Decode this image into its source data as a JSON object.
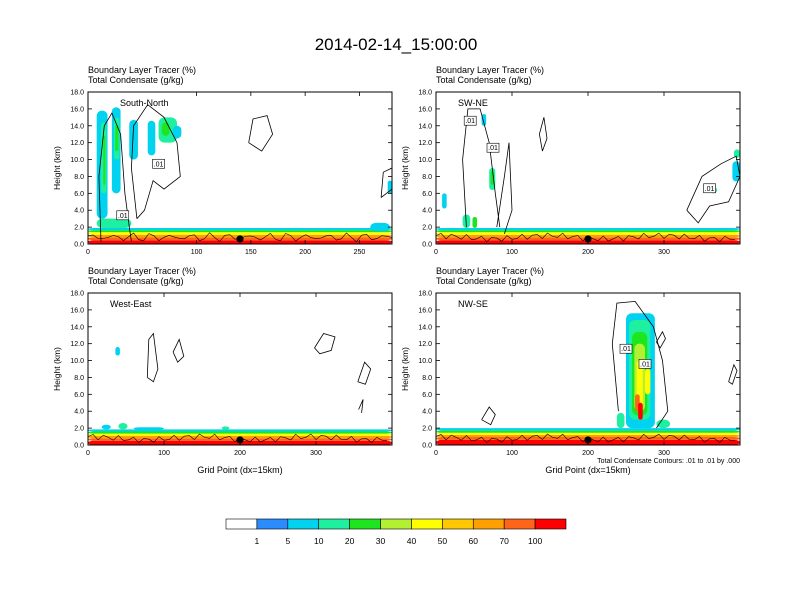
{
  "title": "2014-02-14_15:00:00",
  "colors": {
    "levels": [
      "#ffffff",
      "#2a8cff",
      "#00d2f0",
      "#1ef0a0",
      "#1ee61e",
      "#b4f032",
      "#ffff00",
      "#ffc800",
      "#ffa000",
      "#ff6419",
      "#ff0000"
    ],
    "contour": "#000000"
  },
  "colorbar": {
    "labels": [
      "1",
      "5",
      "10",
      "20",
      "30",
      "40",
      "50",
      "60",
      "70",
      "100"
    ]
  },
  "contour_note": "Total Condensate Contours: .01 to .01 by .000",
  "chart_data": [
    {
      "type": "heatmap",
      "panel": "South-North",
      "title_line1": "Boundary Layer Tracer   (%)",
      "title_line2": "Total Condensate   (g/kg)",
      "ylabel": "Height (km)",
      "xlabel": "",
      "xlim": [
        0,
        280
      ],
      "ylim": [
        0,
        18
      ],
      "xticks": [
        "0",
        "100",
        "150",
        "200",
        "250"
      ],
      "xtick_values": [
        0,
        100,
        150,
        200,
        250
      ],
      "yticks": [
        "0.0",
        "2.0",
        "4.0",
        "6.0",
        "8.0",
        "10.0",
        "12.0",
        "14.0",
        "16.0",
        "18.0"
      ],
      "marker_x": 140,
      "contour_labels": [
        ".01",
        ".01"
      ],
      "contour_label_pos": [
        [
          65,
          9.5
        ],
        [
          32,
          3.4
        ]
      ]
    },
    {
      "type": "heatmap",
      "panel": "SW-NE",
      "title_line1": "Boundary Layer Tracer   (%)",
      "title_line2": "Total Condensate   (g/kg)",
      "ylabel": "Height (km)",
      "xlabel": "",
      "xlim": [
        0,
        400
      ],
      "ylim": [
        0,
        18
      ],
      "xticks": [
        "0",
        "100",
        "200",
        "300"
      ],
      "xtick_values": [
        0,
        100,
        200,
        300
      ],
      "yticks": [
        "0.0",
        "2.0",
        "4.0",
        "6.0",
        "8.0",
        "10.0",
        "12.0",
        "14.0",
        "16.0",
        "18.0"
      ],
      "marker_x": 200,
      "contour_labels": [
        ".01",
        ".01",
        ".01"
      ],
      "contour_label_pos": [
        [
          45,
          14.6
        ],
        [
          75,
          11.4
        ],
        [
          360,
          6.6
        ]
      ]
    },
    {
      "type": "heatmap",
      "panel": "West-East",
      "title_line1": "Boundary Layer Tracer   (%)",
      "title_line2": "Total Condensate   (g/kg)",
      "ylabel": "Height (km)",
      "xlabel": "Grid Point (dx=15km)",
      "xlim": [
        0,
        400
      ],
      "ylim": [
        0,
        18
      ],
      "xticks": [
        "0",
        "100",
        "200",
        "300"
      ],
      "xtick_values": [
        0,
        100,
        200,
        300
      ],
      "yticks": [
        "0.0",
        "2.0",
        "4.0",
        "6.0",
        "8.0",
        "10.0",
        "12.0",
        "14.0",
        "16.0",
        "18.0"
      ],
      "marker_x": 200,
      "contour_labels": [],
      "contour_label_pos": []
    },
    {
      "type": "heatmap",
      "panel": "NW-SE",
      "title_line1": "Boundary Layer Tracer   (%)",
      "title_line2": "Total Condensate   (g/kg)",
      "ylabel": "Height (km)",
      "xlabel": "Grid Point (dx=15km)",
      "xlim": [
        0,
        400
      ],
      "ylim": [
        0,
        18
      ],
      "xticks": [
        "0",
        "100",
        "200",
        "300"
      ],
      "xtick_values": [
        0,
        100,
        200,
        300
      ],
      "yticks": [
        "0.0",
        "2.0",
        "4.0",
        "6.0",
        "8.0",
        "10.0",
        "12.0",
        "14.0",
        "16.0",
        "18.0"
      ],
      "marker_x": 200,
      "contour_labels": [
        ".01",
        ".01"
      ],
      "contour_label_pos": [
        [
          250,
          11.4
        ],
        [
          275,
          9.6
        ]
      ]
    }
  ]
}
